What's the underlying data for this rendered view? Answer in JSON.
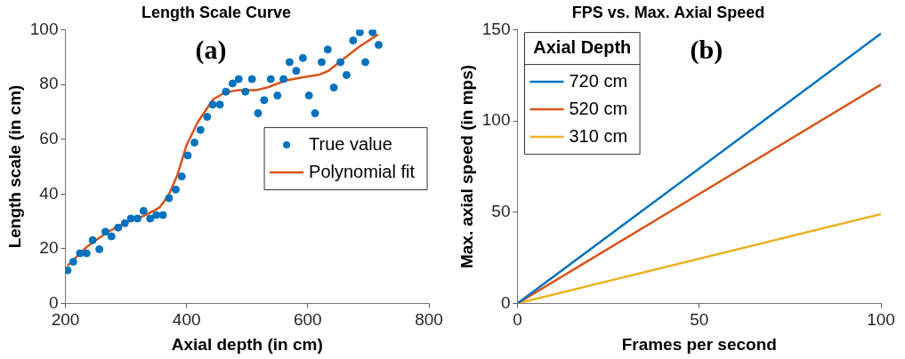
{
  "chart_data": [
    {
      "type": "scatter",
      "title": "Length Scale Curve",
      "xlabel": "Axial depth (in cm)",
      "ylabel": "Length scale (in cm)",
      "annotations": [
        "(a)"
      ],
      "xlim": [
        200,
        800
      ],
      "xticks": [
        200,
        400,
        600,
        800
      ],
      "ylim": [
        0,
        100
      ],
      "yticks": [
        0,
        20,
        40,
        60,
        80,
        100
      ],
      "grid": false,
      "legend": "right",
      "series": [
        {
          "name": "True value",
          "marker": "circle",
          "color": "#0072bd",
          "x": [
            203.5,
            213,
            224,
            235,
            245,
            256,
            266,
            276,
            287,
            298,
            308,
            319,
            329,
            340,
            350,
            361,
            371,
            382,
            392,
            402,
            413,
            423,
            434,
            443,
            455,
            465,
            476,
            486,
            497,
            508,
            518,
            528,
            539,
            550,
            560,
            570,
            581,
            592,
            602,
            612,
            623,
            633,
            643,
            654,
            664,
            675,
            686,
            695,
            707,
            717
          ],
          "values": [
            12.1,
            15.2,
            18.3,
            18.3,
            23.1,
            19.8,
            26.2,
            24.5,
            27.7,
            29.3,
            31.0,
            31.0,
            33.8,
            31.0,
            32.3,
            32.3,
            38.5,
            41.6,
            46.4,
            54.1,
            58.8,
            63.4,
            68.2,
            72.7,
            72.7,
            77.4,
            80.4,
            82.0,
            77.4,
            82.0,
            69.5,
            74.3,
            82.0,
            76.0,
            82.0,
            88.2,
            85.0,
            89.7,
            76.0,
            69.5,
            88.2,
            92.8,
            78.9,
            88.2,
            83.5,
            96.1,
            99.1,
            88.2,
            99.1,
            94.5
          ]
        },
        {
          "name": "Polynomial fit",
          "type": "line",
          "color": "#d95319",
          "x": [
            203.5,
            235,
            270,
            305,
            330,
            355,
            370,
            385,
            400,
            419,
            444,
            464,
            484,
            514,
            534,
            564,
            594,
            619,
            634,
            654,
            684,
            716
          ],
          "values": [
            13.7,
            20.6,
            26.2,
            30,
            32,
            35,
            39.4,
            47,
            57.9,
            66.5,
            74.6,
            77.2,
            77.9,
            77.9,
            79,
            81.5,
            82.7,
            83.6,
            85,
            88.5,
            93.7,
            98.3
          ]
        }
      ]
    },
    {
      "type": "line",
      "title": "FPS vs. Max. Axial Speed",
      "xlabel": "Frames per second",
      "ylabel": "Max. axial speed (in mps)",
      "annotations": [
        "(b)"
      ],
      "legend_title": "Axial Depth",
      "x": [
        0,
        100
      ],
      "xlim": [
        0,
        100
      ],
      "xticks": [
        0,
        50,
        100
      ],
      "ylim": [
        0,
        150
      ],
      "yticks": [
        0,
        50,
        100,
        150
      ],
      "grid": false,
      "legend": "top left",
      "series": [
        {
          "name": "720 cm",
          "color": "#0072bd",
          "values": [
            0,
            148
          ]
        },
        {
          "name": "520 cm",
          "color": "#d95319",
          "values": [
            0,
            120
          ]
        },
        {
          "name": "310 cm",
          "color": "#edb120",
          "values": [
            0,
            49
          ]
        }
      ]
    }
  ]
}
